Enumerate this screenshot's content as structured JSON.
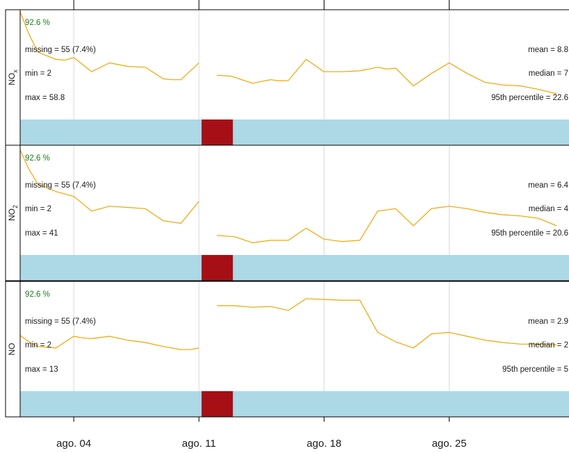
{
  "colors": {
    "line": "#f0a500",
    "data_bar": "#add8e6",
    "missing_bar": "#a50f15",
    "percent_text": "#1f7a1f",
    "grid": "#d9d9d9"
  },
  "chart_data": {
    "type": "line",
    "title": "",
    "x_tick_labels": [
      "ago. 04",
      "ago. 11",
      "ago. 18",
      "ago. 25"
    ],
    "x_tick_days": [
      4,
      11,
      18,
      25
    ],
    "x_range_days": [
      1,
      31.7
    ],
    "missing_range_days": [
      11.15,
      12.9
    ],
    "grid": true,
    "panels": [
      {
        "name": "NO",
        "strip_label": "NO",
        "strip_sub": "x",
        "capture": "92.6 %",
        "missing": "missing = 55 (7.4%)",
        "min": "min = 2",
        "max": "max = 58.8",
        "mean": "mean = 8.8",
        "median": "median = 7",
        "p95": "95th percentile = 22.6",
        "y_range": [
          -2,
          60
        ],
        "segments": [
          [
            [
              1.0,
              58.8
            ],
            [
              1.5,
              46
            ],
            [
              2.0,
              36
            ],
            [
              3.0,
              32
            ],
            [
              3.5,
              31.5
            ],
            [
              4.0,
              33
            ],
            [
              4.5,
              29
            ],
            [
              5.0,
              25
            ],
            [
              6.0,
              30
            ],
            [
              7.0,
              28
            ],
            [
              8.0,
              27.5
            ],
            [
              9.0,
              21
            ],
            [
              9.5,
              20.5
            ],
            [
              10.0,
              20.5
            ],
            [
              11.0,
              30
            ]
          ],
          [
            [
              12.0,
              23
            ],
            [
              12.8,
              22.5
            ],
            [
              14.0,
              18.5
            ],
            [
              15.0,
              20.5
            ],
            [
              15.5,
              19.8
            ],
            [
              16.0,
              20
            ],
            [
              17.0,
              32
            ],
            [
              18.0,
              25
            ],
            [
              19.0,
              25
            ],
            [
              20.0,
              25.5
            ],
            [
              21.0,
              27.5
            ],
            [
              21.5,
              26.5
            ],
            [
              22.0,
              27
            ],
            [
              23.0,
              17
            ],
            [
              24.0,
              24
            ],
            [
              25.0,
              30
            ],
            [
              26.0,
              24
            ],
            [
              27.0,
              19
            ],
            [
              28.0,
              17.5
            ],
            [
              29.0,
              17
            ],
            [
              30.0,
              15
            ],
            [
              31.0,
              12.5
            ]
          ]
        ]
      },
      {
        "name": "NO",
        "strip_label": "NO",
        "strip_sub": "2",
        "capture": "92.6 %",
        "missing": "missing = 55 (7.4%)",
        "min": "min = 2",
        "max": "max = 41",
        "mean": "mean = 6.4",
        "median": "median = 4",
        "p95": "95th percentile = 20.6",
        "y_range": [
          -2,
          43
        ],
        "segments": [
          [
            [
              1.0,
              41
            ],
            [
              1.5,
              33
            ],
            [
              2.0,
              27
            ],
            [
              3.0,
              24
            ],
            [
              4.0,
              22
            ],
            [
              4.5,
              19
            ],
            [
              5.0,
              16
            ],
            [
              6.0,
              18
            ],
            [
              7.0,
              17.5
            ],
            [
              8.0,
              17
            ],
            [
              9.0,
              12
            ],
            [
              10.0,
              11
            ],
            [
              11.0,
              20
            ]
          ],
          [
            [
              12.0,
              6
            ],
            [
              13.0,
              5.5
            ],
            [
              14.0,
              3
            ],
            [
              15.0,
              4
            ],
            [
              16.0,
              4
            ],
            [
              17.0,
              9
            ],
            [
              18.0,
              4.5
            ],
            [
              19.0,
              3.5
            ],
            [
              20.0,
              4
            ],
            [
              21.0,
              16
            ],
            [
              22.0,
              17
            ],
            [
              23.0,
              10
            ],
            [
              24.0,
              17
            ],
            [
              25.0,
              18
            ],
            [
              26.0,
              17
            ],
            [
              27.0,
              15.5
            ],
            [
              28.0,
              14.5
            ],
            [
              29.0,
              14
            ],
            [
              30.0,
              13
            ],
            [
              31.0,
              10
            ]
          ]
        ]
      },
      {
        "name": "NO",
        "strip_label": "NO",
        "strip_sub": "",
        "capture": "92.6 %",
        "missing": "missing = 55 (7.4%)",
        "min": "min = 2",
        "max": "max = 13",
        "mean": "mean = 2.9",
        "median": "median = 2",
        "p95": "95th percentile = 5",
        "y_range": [
          -0.5,
          13.5
        ],
        "segments": [
          [
            [
              1.0,
              6.6
            ],
            [
              1.5,
              5.8
            ],
            [
              2.0,
              5.2
            ],
            [
              3.0,
              5.0
            ],
            [
              4.0,
              6.5
            ],
            [
              4.5,
              6.3
            ],
            [
              5.0,
              6.2
            ],
            [
              6.0,
              6.5
            ],
            [
              7.0,
              6.0
            ],
            [
              8.0,
              5.7
            ],
            [
              9.0,
              5.2
            ],
            [
              10.0,
              4.8
            ],
            [
              10.5,
              4.8
            ],
            [
              11.0,
              5.0
            ]
          ],
          [
            [
              12.0,
              10.4
            ],
            [
              13.0,
              10.4
            ],
            [
              14.0,
              10.2
            ],
            [
              15.0,
              10.3
            ],
            [
              16.0,
              9.8
            ],
            [
              17.0,
              11.3
            ],
            [
              18.0,
              11.2
            ],
            [
              19.0,
              11.1
            ],
            [
              20.0,
              11.1
            ],
            [
              21.0,
              7.0
            ],
            [
              22.0,
              5.8
            ],
            [
              23.0,
              5.0
            ],
            [
              24.0,
              6.8
            ],
            [
              25.0,
              7.0
            ],
            [
              26.0,
              6.5
            ],
            [
              27.0,
              6.0
            ],
            [
              28.0,
              5.7
            ],
            [
              29.0,
              5.5
            ],
            [
              30.0,
              5.5
            ],
            [
              31.0,
              5.4
            ]
          ]
        ]
      }
    ]
  }
}
